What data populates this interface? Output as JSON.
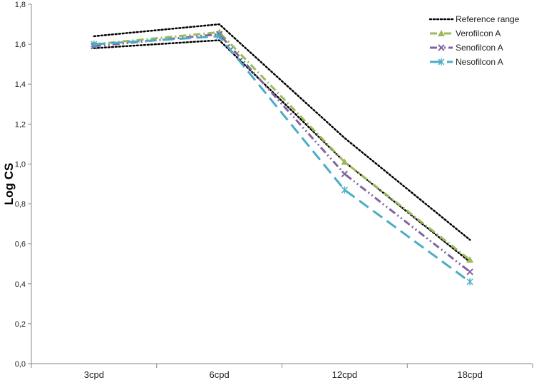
{
  "chart_data": {
    "type": "line",
    "title": "",
    "xlabel": "",
    "ylabel": "Log CS",
    "ylim": [
      0,
      1.8
    ],
    "ytick_step": 0.2,
    "ytick_labels": [
      "0,0",
      "0,2",
      "0,4",
      "0,6",
      "0,8",
      "1,0",
      "1,2",
      "1,4",
      "1,6",
      "1,8"
    ],
    "categories": [
      "3cpd",
      "6cpd",
      "12cpd",
      "18cpd"
    ],
    "grid": false,
    "legend_position": "top-right",
    "reference_range": {
      "name": "Reference range",
      "color": "#000000",
      "upper": [
        1.64,
        1.7,
        1.13,
        0.62
      ],
      "lower": [
        1.58,
        1.62,
        1.01,
        0.51
      ]
    },
    "series": [
      {
        "name": "Verofilcon A",
        "values": [
          1.6,
          1.66,
          1.01,
          0.52
        ],
        "color": "#9BBB59",
        "marker": "triangle"
      },
      {
        "name": "Senofilcon A",
        "values": [
          1.59,
          1.65,
          0.95,
          0.46
        ],
        "color": "#8064A2",
        "marker": "x"
      },
      {
        "name": "Nesofilcon A",
        "values": [
          1.6,
          1.64,
          0.87,
          0.41
        ],
        "color": "#4BACC6",
        "marker": "asterisk"
      }
    ]
  }
}
